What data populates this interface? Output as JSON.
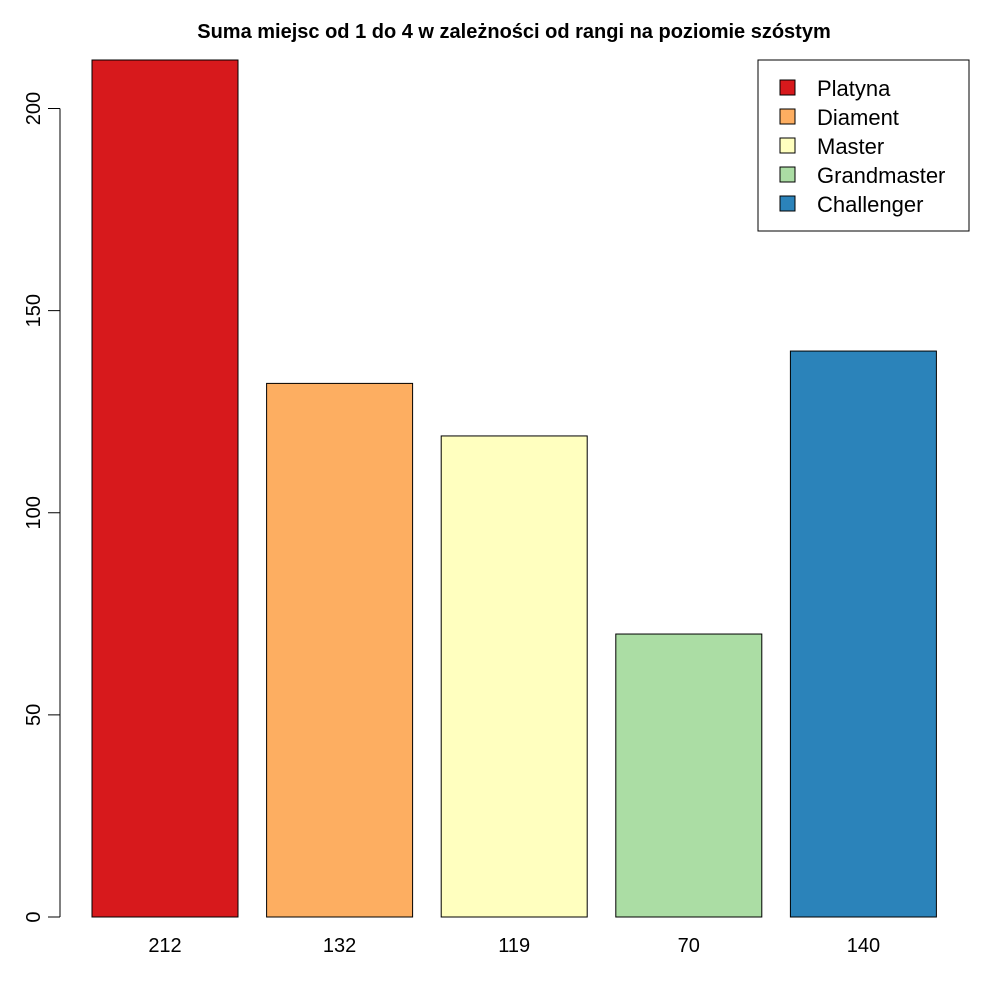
{
  "chart_data": {
    "type": "bar",
    "title": "Suma miejsc od 1 do 4 w zależności od rangi na poziomie szóstym",
    "xlabel": "",
    "ylabel": "",
    "categories": [
      "212",
      "132",
      "119",
      "70",
      "140"
    ],
    "values": [
      212,
      132,
      119,
      70,
      140
    ],
    "colors": [
      "#d7191c",
      "#fdae61",
      "#ffffbf",
      "#abdda4",
      "#2b83ba"
    ],
    "ylim": [
      0,
      212
    ],
    "yticks": [
      0,
      50,
      100,
      150,
      200
    ],
    "grid": false,
    "legend": {
      "placement": "top-right",
      "entries": [
        "Platyna",
        "Diament",
        "Master",
        "Grandmaster",
        "Challenger"
      ]
    }
  }
}
